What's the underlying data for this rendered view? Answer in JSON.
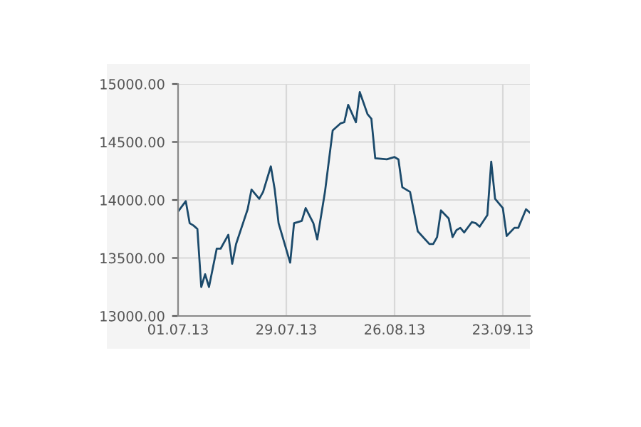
{
  "chart_data": {
    "type": "line",
    "x": [
      "2013-07-01",
      "2013-07-03",
      "2013-07-04",
      "2013-07-05",
      "2013-07-06",
      "2013-07-07",
      "2013-07-08",
      "2013-07-09",
      "2013-07-11",
      "2013-07-12",
      "2013-07-14",
      "2013-07-15",
      "2013-07-16",
      "2013-07-18",
      "2013-07-19",
      "2013-07-20",
      "2013-07-22",
      "2013-07-23",
      "2013-07-25",
      "2013-07-26",
      "2013-07-27",
      "2013-07-30",
      "2013-07-31",
      "2013-08-02",
      "2013-08-03",
      "2013-08-05",
      "2013-08-06",
      "2013-08-08",
      "2013-08-10",
      "2013-08-12",
      "2013-08-13",
      "2013-08-14",
      "2013-08-16",
      "2013-08-17",
      "2013-08-19",
      "2013-08-20",
      "2013-08-21",
      "2013-08-24",
      "2013-08-26",
      "2013-08-27",
      "2013-08-28",
      "2013-08-30",
      "2013-09-01",
      "2013-09-04",
      "2013-09-05",
      "2013-09-06",
      "2013-09-07",
      "2013-09-09",
      "2013-09-10",
      "2013-09-11",
      "2013-09-12",
      "2013-09-13",
      "2013-09-15",
      "2013-09-16",
      "2013-09-17",
      "2013-09-19",
      "2013-09-20",
      "2013-09-21",
      "2013-09-23",
      "2013-09-24",
      "2013-09-26",
      "2013-09-27",
      "2013-09-29",
      "2013-09-30"
    ],
    "series": [
      {
        "color": "#1b4a6b",
        "values": [
          13900,
          13990,
          13800,
          13780,
          13750,
          13250,
          13360,
          13250,
          13580,
          13580,
          13700,
          13450,
          13620,
          13820,
          13920,
          14090,
          14010,
          14070,
          14290,
          14090,
          13800,
          13460,
          13800,
          13820,
          13930,
          13800,
          13660,
          14070,
          14600,
          14660,
          14670,
          14820,
          14670,
          14930,
          14740,
          14700,
          14360,
          14350,
          14370,
          14350,
          14110,
          14070,
          13730,
          13620,
          13620,
          13680,
          13910,
          13840,
          13680,
          13740,
          13760,
          13720,
          13810,
          13800,
          13770,
          13870,
          14330,
          14010,
          13930,
          13690,
          13760,
          13760,
          13920,
          13890
        ]
      }
    ],
    "xlim": [
      "2013-07-01",
      "2013-09-30"
    ],
    "xticks": [
      {
        "value": "2013-07-01",
        "label": "01.07.13"
      },
      {
        "value": "2013-07-29",
        "label": "29.07.13"
      },
      {
        "value": "2013-08-26",
        "label": "26.08.13"
      },
      {
        "value": "2013-09-23",
        "label": "23.09.13"
      }
    ],
    "ylim": [
      13000,
      15000
    ],
    "yticks": [
      {
        "value": 13000,
        "label": "13000.00"
      },
      {
        "value": 13500,
        "label": "13500.00"
      },
      {
        "value": 14000,
        "label": "14000.00"
      },
      {
        "value": 14500,
        "label": "14500.00"
      },
      {
        "value": 15000,
        "label": "15000.00"
      }
    ],
    "grid": true,
    "marker": "none",
    "line_style": "solid"
  }
}
